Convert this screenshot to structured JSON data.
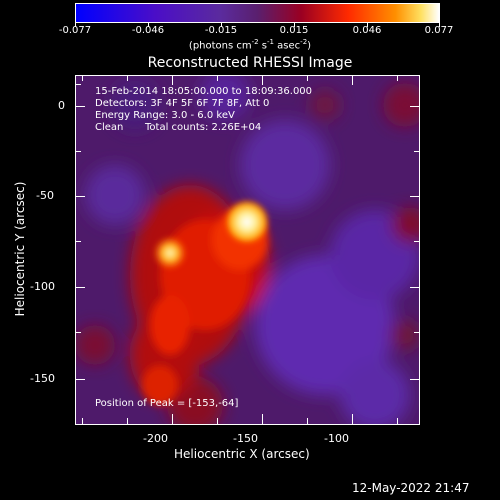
{
  "colorbar": {
    "ticks": [
      "-0.077",
      "-0.046",
      "-0.015",
      "0.015",
      "0.046",
      "0.077"
    ],
    "units": "(photons cm^-2 s^-1 asec^-2)"
  },
  "title": "Reconstructed RHESSI Image",
  "info": {
    "time_range": "15-Feb-2014 18:05:00.000 to 18:09:36.000",
    "detectors": "Detectors: 3F 4F 5F 6F 7F 8F, Att 0",
    "energy": "Energy Range: 3.0 - 6.0 keV",
    "algorithm": "Clean",
    "counts": "Total counts: 2.26E+04",
    "peak": "Position of Peak = [-153,-64]"
  },
  "axes": {
    "xlabel": "Heliocentric X (arcsec)",
    "ylabel": "Heliocentric Y (arcsec)",
    "xticks": [
      "-200",
      "-150",
      "-100"
    ],
    "yticks": [
      "0",
      "-50",
      "-100",
      "-150"
    ]
  },
  "timestamp": "12-May-2022 21:47",
  "colors": {
    "background": "#000000",
    "foreground": "#ffffff",
    "negative": "#0010ff",
    "neutral": "#5a1f8c",
    "positive": "#ff3a00",
    "peak": "#ffffe0"
  }
}
